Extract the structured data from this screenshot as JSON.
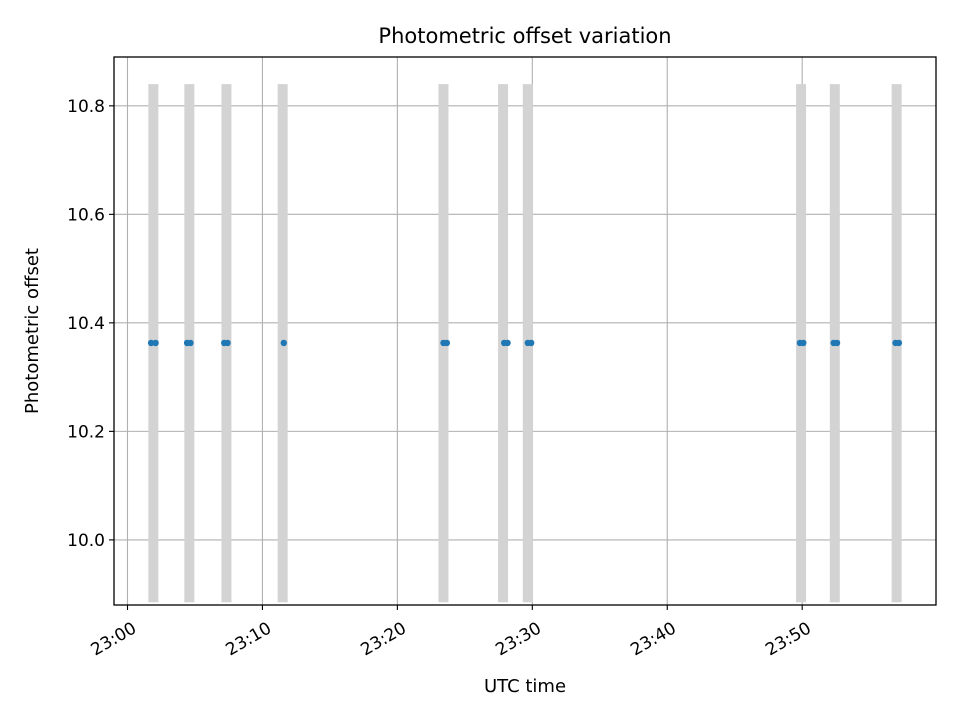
{
  "chart_data": {
    "type": "scatter",
    "title": "Photometric offset variation",
    "xlabel": "UTC time",
    "ylabel": "Photometric offset",
    "x_ticks": [
      "23:00",
      "23:10",
      "23:20",
      "23:30",
      "23:40",
      "23:50"
    ],
    "y_ticks": [
      "10.0",
      "10.2",
      "10.4",
      "10.6",
      "10.8"
    ],
    "xlim": [
      "22:59:00",
      "23:59:55"
    ],
    "ylim": [
      9.88,
      10.89
    ],
    "grid": true,
    "colors": {
      "points": "#1f77b4",
      "bands": "#d3d3d3",
      "grid": "#b0b0b0"
    },
    "series": [
      {
        "x": [
          "23:01:45",
          "23:02:05",
          "23:04:25",
          "23:04:40",
          "23:07:10",
          "23:07:25",
          "23:11:35",
          "23:23:25",
          "23:23:40",
          "23:27:55",
          "23:28:10",
          "23:29:40",
          "23:29:55",
          "23:49:50",
          "23:50:05",
          "23:52:20",
          "23:52:35",
          "23:56:55",
          "23:57:10"
        ],
        "y": [
          10.363,
          10.363,
          10.363,
          10.363,
          10.363,
          10.363,
          10.363,
          10.363,
          10.363,
          10.363,
          10.363,
          10.363,
          10.363,
          10.363,
          10.363,
          10.363,
          10.363,
          10.363,
          10.363
        ]
      }
    ],
    "bands": [
      {
        "x": "23:01:55",
        "y_low": 9.885,
        "y_high": 10.84
      },
      {
        "x": "23:04:35",
        "y_low": 9.885,
        "y_high": 10.84
      },
      {
        "x": "23:07:20",
        "y_low": 9.885,
        "y_high": 10.84
      },
      {
        "x": "23:11:30",
        "y_low": 9.885,
        "y_high": 10.84
      },
      {
        "x": "23:23:25",
        "y_low": 9.885,
        "y_high": 10.84
      },
      {
        "x": "23:27:50",
        "y_low": 9.885,
        "y_high": 10.84
      },
      {
        "x": "23:29:40",
        "y_low": 9.885,
        "y_high": 10.84
      },
      {
        "x": "23:49:55",
        "y_low": 9.885,
        "y_high": 10.84
      },
      {
        "x": "23:52:25",
        "y_low": 9.885,
        "y_high": 10.84
      },
      {
        "x": "23:57:00",
        "y_low": 9.885,
        "y_high": 10.84
      }
    ]
  }
}
